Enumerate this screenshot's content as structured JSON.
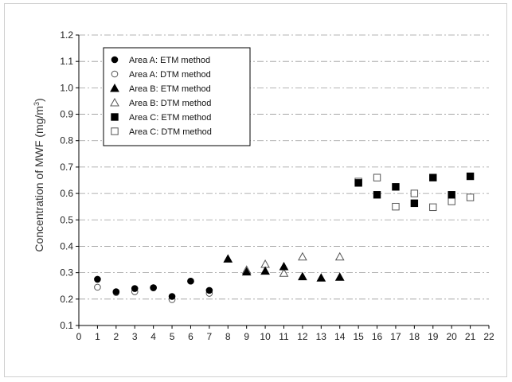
{
  "chart_data": {
    "type": "scatter",
    "title": "",
    "xlabel": "",
    "ylabel_main": "Concentration of MWF (mg/m",
    "ylabel_sup": "3",
    "ylabel_end": ")",
    "xlim": [
      0,
      22
    ],
    "ylim": [
      0.1,
      1.2
    ],
    "x_ticks": [
      "0",
      "1",
      "2",
      "3",
      "4",
      "5",
      "6",
      "7",
      "8",
      "9",
      "10",
      "11",
      "12",
      "13",
      "14",
      "15",
      "16",
      "17",
      "18",
      "19",
      "20",
      "21",
      "22"
    ],
    "y_ticks": [
      "0.1",
      "0.2",
      "0.3",
      "0.4",
      "0.5",
      "0.6",
      "0.7",
      "0.8",
      "0.9",
      "1.0",
      "1.1",
      "1.2"
    ],
    "grid": "horizontal dashed",
    "legend_position": "top-left",
    "series": [
      {
        "name": "Area A: ETM method",
        "marker": "circle-filled",
        "points": [
          [
            1,
            0.275
          ],
          [
            2,
            0.228
          ],
          [
            3,
            0.24
          ],
          [
            4,
            0.243
          ],
          [
            5,
            0.21
          ],
          [
            6,
            0.268
          ],
          [
            7,
            0.233
          ]
        ]
      },
      {
        "name": "Area A: DTM method",
        "marker": "circle-open",
        "points": [
          [
            1,
            0.245
          ],
          [
            2,
            0.225
          ],
          [
            3,
            0.228
          ],
          [
            4,
            0.243
          ],
          [
            5,
            0.198
          ],
          [
            6,
            0.268
          ],
          [
            7,
            0.222
          ]
        ]
      },
      {
        "name": "Area B: ETM method",
        "marker": "triangle-filled",
        "points": [
          [
            8,
            0.352
          ],
          [
            9,
            0.303
          ],
          [
            10,
            0.306
          ],
          [
            11,
            0.323
          ],
          [
            12,
            0.285
          ],
          [
            13,
            0.28
          ],
          [
            14,
            0.283
          ]
        ]
      },
      {
        "name": "Area B: DTM method",
        "marker": "triangle-open",
        "points": [
          [
            9,
            0.31
          ],
          [
            10,
            0.332
          ],
          [
            11,
            0.298
          ],
          [
            12,
            0.36
          ],
          [
            14,
            0.36
          ]
        ]
      },
      {
        "name": "Area C: ETM method",
        "marker": "square-filled",
        "points": [
          [
            15,
            0.64
          ],
          [
            16,
            0.595
          ],
          [
            17,
            0.625
          ],
          [
            18,
            0.563
          ],
          [
            19,
            0.66
          ],
          [
            20,
            0.595
          ],
          [
            21,
            0.665
          ]
        ]
      },
      {
        "name": "Area C: DTM method",
        "marker": "square-open",
        "points": [
          [
            15,
            0.645
          ],
          [
            16,
            0.66
          ],
          [
            17,
            0.55
          ],
          [
            18,
            0.6
          ],
          [
            19,
            0.548
          ],
          [
            20,
            0.57
          ],
          [
            21,
            0.585
          ]
        ]
      }
    ]
  }
}
